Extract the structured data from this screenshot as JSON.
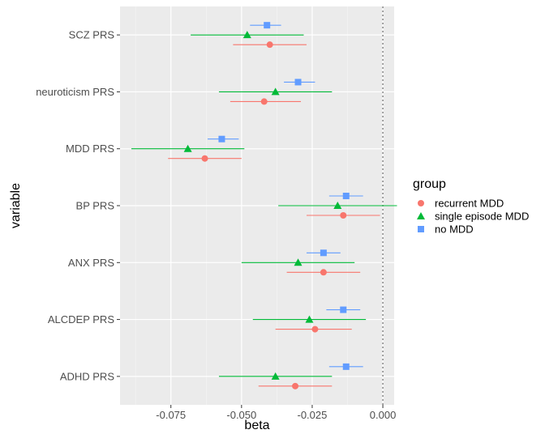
{
  "chart_data": {
    "type": "scatter",
    "subtype": "dot-and-whisker",
    "xlabel": "beta",
    "ylabel": "variable",
    "xlim": [
      -0.093,
      0.004
    ],
    "x_ticks": [
      -0.075,
      -0.05,
      -0.025,
      0.0
    ],
    "x_tick_labels": [
      "-0.075",
      "-0.050",
      "-0.025",
      "0.000"
    ],
    "reference_line_x": 0.0,
    "categories": [
      "SCZ PRS",
      "neuroticism PRS",
      "MDD PRS",
      "BP PRS",
      "ANX PRS",
      "ALCDEP PRS",
      "ADHD PRS"
    ],
    "legend": {
      "title": "group",
      "position": "right",
      "entries": [
        "recurrent MDD",
        "single episode MDD",
        "no MDD"
      ]
    },
    "grid": true,
    "background": "#ebebeb",
    "series": [
      {
        "name": "recurrent MDD",
        "color": "#f8766d",
        "marker": "circle",
        "estimate": [
          -0.04,
          -0.042,
          -0.063,
          -0.014,
          -0.021,
          -0.024,
          -0.031
        ],
        "ci_low": [
          -0.053,
          -0.054,
          -0.076,
          -0.027,
          -0.034,
          -0.038,
          -0.044
        ],
        "ci_high": [
          -0.027,
          -0.029,
          -0.05,
          -0.001,
          -0.008,
          -0.011,
          -0.018
        ]
      },
      {
        "name": "single episode MDD",
        "color": "#00ba38",
        "marker": "triangle",
        "estimate": [
          -0.048,
          -0.038,
          -0.069,
          -0.016,
          -0.03,
          -0.026,
          -0.038
        ],
        "ci_low": [
          -0.068,
          -0.058,
          -0.089,
          -0.037,
          -0.05,
          -0.046,
          -0.058
        ],
        "ci_high": [
          -0.028,
          -0.018,
          -0.049,
          0.005,
          -0.01,
          -0.006,
          -0.018
        ]
      },
      {
        "name": "no MDD",
        "color": "#619cff",
        "marker": "square",
        "estimate": [
          -0.041,
          -0.03,
          -0.057,
          -0.013,
          -0.021,
          -0.014,
          -0.013
        ],
        "ci_low": [
          -0.047,
          -0.035,
          -0.062,
          -0.019,
          -0.027,
          -0.02,
          -0.019
        ],
        "ci_high": [
          -0.036,
          -0.024,
          -0.051,
          -0.007,
          -0.015,
          -0.008,
          -0.007
        ]
      }
    ]
  }
}
